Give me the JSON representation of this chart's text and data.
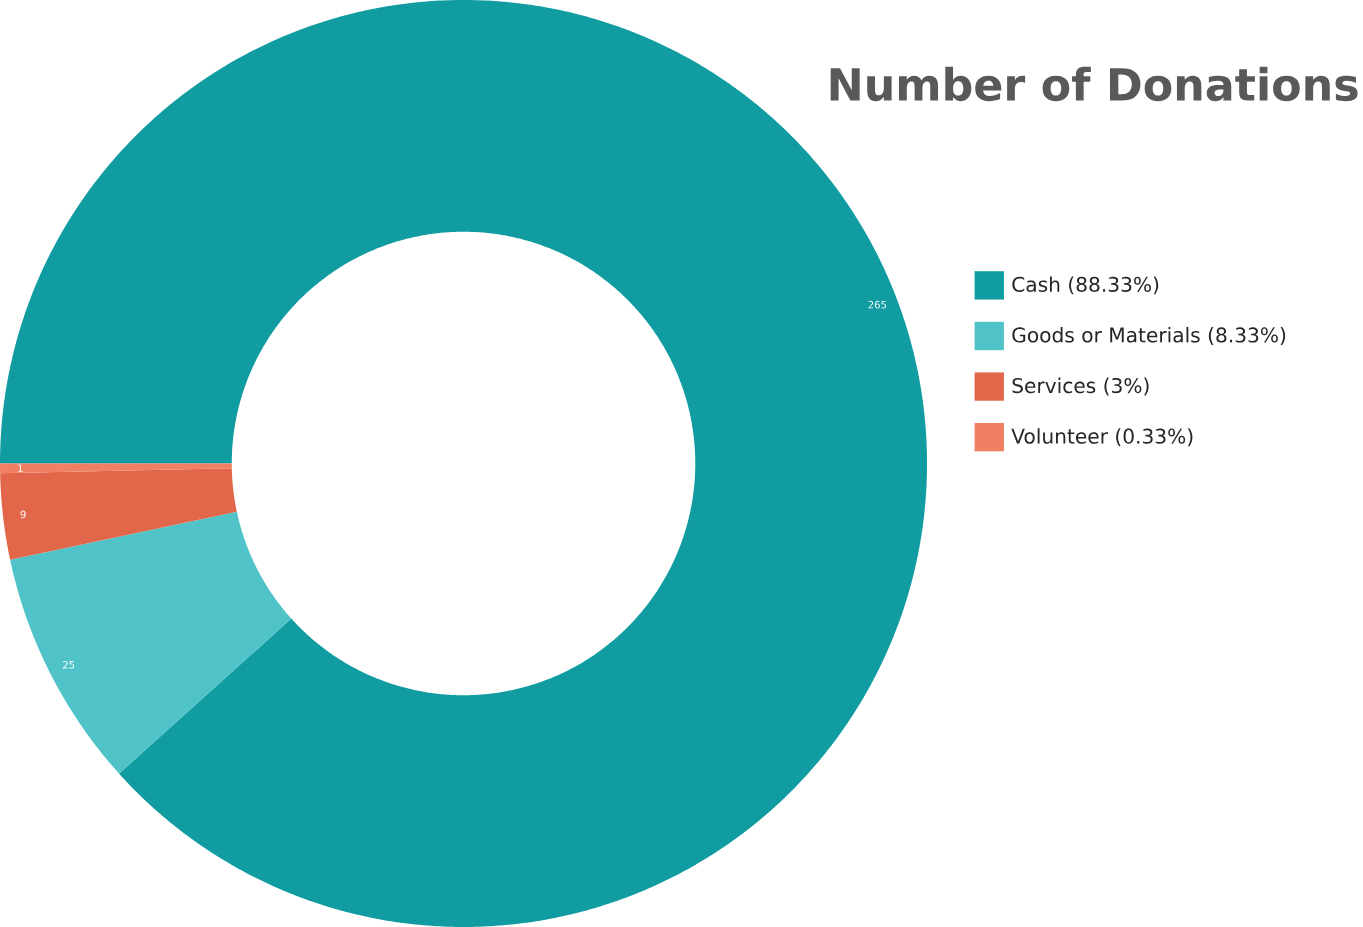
{
  "chart_data": {
    "type": "donut",
    "title": "Number of Donations",
    "categories": [
      "Cash (88.33%)",
      "Goods or Materials (8.33%)",
      "Services (3%)",
      "Volunteer (0.33%)"
    ],
    "values": [
      265,
      25,
      9,
      1
    ],
    "colors": [
      "#109ca1",
      "#4fc3c8",
      "#e2674a",
      "#f07f63"
    ],
    "data_labels": true,
    "legend": "right"
  }
}
